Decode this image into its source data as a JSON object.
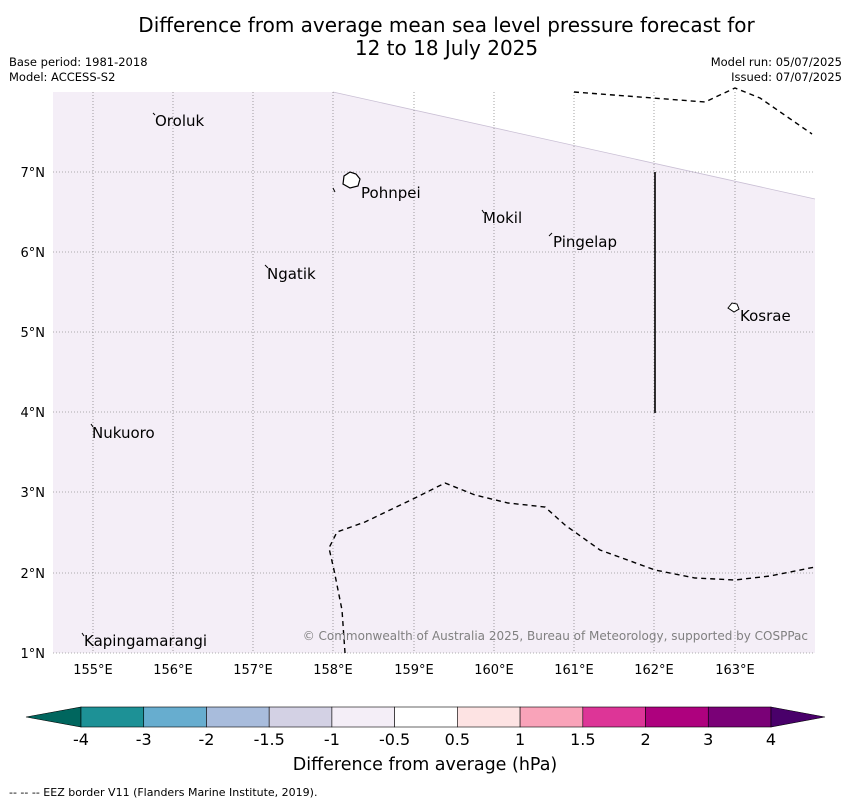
{
  "title_line1": "Difference from average mean sea level pressure forecast for",
  "title_line2": "12 to 18 July 2025",
  "base_period": "Base period: 1981-2018",
  "model": "Model: ACCESS-S2",
  "model_run": "Model run: 05/07/2025",
  "issued": "Issued: 07/07/2025",
  "lon_labels": [
    "155°E",
    "156°E",
    "157°E",
    "158°E",
    "159°E",
    "160°E",
    "161°E",
    "162°E",
    "163°E"
  ],
  "lat_labels": [
    "7°N",
    "6°N",
    "5°N",
    "4°N",
    "3°N",
    "2°N",
    "1°N"
  ],
  "places": [
    {
      "name": "Oroluk"
    },
    {
      "name": "Pohnpei"
    },
    {
      "name": "Mokil"
    },
    {
      "name": "Pingelap"
    },
    {
      "name": "Ngatik"
    },
    {
      "name": "Kosrae"
    },
    {
      "name": "Nukuoro"
    },
    {
      "name": "Kapingamarangi"
    }
  ],
  "copyright": "© Commonwealth of Australia 2025, Bureau of Meteorology, supported by COSPPac",
  "colorbar": {
    "ticks": [
      "-4",
      "-3",
      "-2",
      "-1.5",
      "-1",
      "-0.5",
      "0.5",
      "1",
      "1.5",
      "2",
      "3",
      "4"
    ],
    "colors": {
      "under": "#00665e",
      "bins": [
        "#1d9196",
        "#67adcf",
        "#a8bcdc",
        "#d3d1e4",
        "#f4eef7",
        "#ffffff",
        "#fde3e3",
        "#f9a3b9",
        "#dd3597",
        "#ae017e",
        "#7a0177"
      ],
      "over": "#49006a"
    },
    "label": "Difference from average (hPa)"
  },
  "fill_color": "#f4eef7",
  "footnote": "--  --  -- EEZ border V11 (Flanders Marine Institute, 2019)."
}
